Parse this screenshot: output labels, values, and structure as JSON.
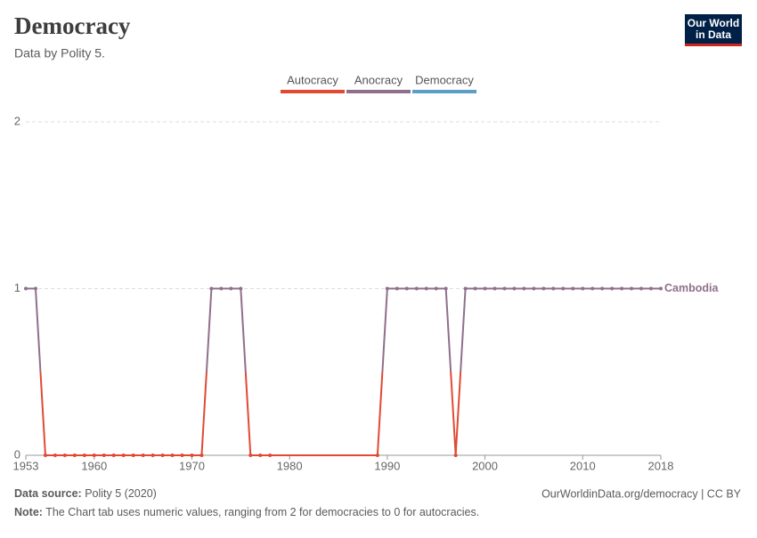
{
  "header": {
    "title": "Democracy",
    "subtitle": "Data by Polity 5.",
    "logo": [
      "Our World",
      "in Data"
    ]
  },
  "chart_data": {
    "type": "line",
    "legend": [
      {
        "name": "Autocracy",
        "color": "#e04a35"
      },
      {
        "name": "Anocracy",
        "color": "#8f6f8c"
      },
      {
        "name": "Democracy",
        "color": "#5d9ec9"
      }
    ],
    "x": [
      1953,
      1954,
      1955,
      1956,
      1957,
      1958,
      1959,
      1960,
      1961,
      1962,
      1963,
      1964,
      1965,
      1966,
      1967,
      1968,
      1969,
      1970,
      1971,
      1972,
      1973,
      1974,
      1975,
      1976,
      1977,
      1978,
      1989,
      1990,
      1991,
      1992,
      1993,
      1994,
      1995,
      1996,
      1997,
      1998,
      1999,
      2000,
      2001,
      2002,
      2003,
      2004,
      2005,
      2006,
      2007,
      2008,
      2009,
      2010,
      2011,
      2012,
      2013,
      2014,
      2015,
      2016,
      2017,
      2018
    ],
    "series": [
      {
        "name": "Cambodia",
        "values": [
          1,
          1,
          0,
          0,
          0,
          0,
          0,
          0,
          0,
          0,
          0,
          0,
          0,
          0,
          0,
          0,
          0,
          0,
          0,
          1,
          1,
          1,
          1,
          0,
          0,
          0,
          0,
          1,
          1,
          1,
          1,
          1,
          1,
          1,
          0,
          1,
          1,
          1,
          1,
          1,
          1,
          1,
          1,
          1,
          1,
          1,
          1,
          1,
          1,
          1,
          1,
          1,
          1,
          1,
          1,
          1
        ]
      }
    ],
    "xlim": [
      1953,
      2018
    ],
    "xticks": [
      1953,
      1960,
      1970,
      1980,
      1990,
      2000,
      2010,
      2018
    ],
    "ylim": [
      0,
      2
    ],
    "yticks": [
      0,
      1,
      2
    ],
    "grid": true
  },
  "footer": {
    "source_label": "Data source:",
    "source": "Polity 5 (2020)",
    "credit": "OurWorldinData.org/democracy | CC BY",
    "note_label": "Note:",
    "note": "The Chart tab uses numeric values, ranging from 2 for democracies to 0 for autocracies."
  }
}
